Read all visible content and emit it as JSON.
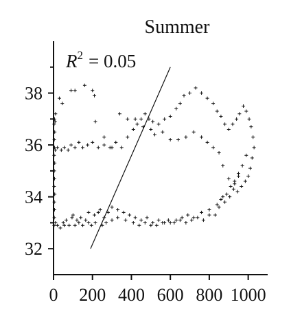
{
  "chart_data": {
    "type": "scatter",
    "title": "Summer",
    "annotation": {
      "r2_label": "R",
      "r2_exponent": "2",
      "r2_value": "= 0.05"
    },
    "xlabel": "",
    "ylabel": "",
    "xlim": [
      0,
      1100
    ],
    "ylim": [
      31,
      40
    ],
    "x_ticks": [
      0,
      200,
      400,
      600,
      800,
      1000
    ],
    "x_tick_labels": [
      "0",
      "200",
      "400",
      "600",
      "800",
      "1000"
    ],
    "y_ticks": [
      32,
      34,
      36,
      38
    ],
    "y_tick_labels": [
      "32",
      "34",
      "36",
      "38"
    ],
    "y_minor_ticks": [
      33,
      35,
      37,
      39
    ],
    "grid": false,
    "fit_line": {
      "x": [
        190,
        600
      ],
      "y": [
        32.0,
        39.0
      ]
    },
    "series": [
      {
        "points": [
          [
            3,
            32.9
          ],
          [
            4,
            33.2
          ],
          [
            5,
            33.5
          ],
          [
            4,
            33.8
          ],
          [
            6,
            34.1
          ],
          [
            3,
            34.4
          ],
          [
            5,
            34.7
          ],
          [
            4,
            35.0
          ],
          [
            6,
            35.3
          ],
          [
            3,
            35.6
          ],
          [
            5,
            35.9
          ],
          [
            4,
            36.2
          ],
          [
            6,
            36.5
          ],
          [
            3,
            36.8
          ],
          [
            5,
            37.0
          ],
          [
            10,
            37.2
          ],
          [
            8,
            36.9
          ],
          [
            9,
            35.8
          ],
          [
            10,
            33.0
          ],
          [
            20,
            32.9
          ],
          [
            35,
            32.8
          ],
          [
            50,
            33.0
          ],
          [
            55,
            32.9
          ],
          [
            65,
            33.1
          ],
          [
            80,
            32.9
          ],
          [
            95,
            33.2
          ],
          [
            110,
            32.9
          ],
          [
            120,
            33.1
          ],
          [
            130,
            33.0
          ],
          [
            150,
            32.9
          ],
          [
            165,
            33.1
          ],
          [
            180,
            33.0
          ],
          [
            195,
            32.9
          ],
          [
            210,
            33.3
          ],
          [
            230,
            33.4
          ],
          [
            240,
            33.5
          ],
          [
            260,
            33.2
          ],
          [
            280,
            33.4
          ],
          [
            300,
            33.6
          ],
          [
            330,
            33.5
          ],
          [
            360,
            33.4
          ],
          [
            390,
            33.3
          ],
          [
            420,
            33.2
          ],
          [
            450,
            33.1
          ],
          [
            480,
            33.2
          ],
          [
            510,
            33.0
          ],
          [
            540,
            33.1
          ],
          [
            570,
            33.0
          ],
          [
            600,
            33.0
          ],
          [
            630,
            33.1
          ],
          [
            660,
            33.2
          ],
          [
            690,
            33.3
          ],
          [
            720,
            33.2
          ],
          [
            760,
            33.4
          ],
          [
            800,
            33.5
          ],
          [
            840,
            33.7
          ],
          [
            860,
            33.9
          ],
          [
            880,
            33.8
          ],
          [
            905,
            34.0
          ],
          [
            925,
            34.3
          ],
          [
            945,
            34.2
          ],
          [
            965,
            34.4
          ],
          [
            985,
            34.6
          ],
          [
            1000,
            34.8
          ],
          [
            1010,
            35.1
          ],
          [
            1020,
            35.5
          ],
          [
            1030,
            35.9
          ],
          [
            1025,
            36.3
          ],
          [
            1015,
            36.7
          ],
          [
            1005,
            37.0
          ],
          [
            990,
            37.3
          ],
          [
            975,
            37.5
          ],
          [
            20,
            35.9
          ],
          [
            40,
            35.8
          ],
          [
            55,
            35.9
          ],
          [
            75,
            35.8
          ],
          [
            90,
            36.0
          ],
          [
            110,
            35.9
          ],
          [
            130,
            36.1
          ],
          [
            150,
            35.9
          ],
          [
            175,
            36.0
          ],
          [
            200,
            36.1
          ],
          [
            230,
            35.9
          ],
          [
            260,
            36.0
          ],
          [
            290,
            35.9
          ],
          [
            320,
            36.1
          ],
          [
            350,
            35.9
          ],
          [
            380,
            36.3
          ],
          [
            410,
            36.6
          ],
          [
            430,
            36.8
          ],
          [
            450,
            37.0
          ],
          [
            470,
            37.2
          ],
          [
            490,
            37.0
          ],
          [
            510,
            36.9
          ],
          [
            540,
            36.8
          ],
          [
            570,
            37.0
          ],
          [
            600,
            37.1
          ],
          [
            630,
            37.4
          ],
          [
            650,
            37.6
          ],
          [
            670,
            37.9
          ],
          [
            700,
            38.0
          ],
          [
            730,
            38.2
          ],
          [
            760,
            38.0
          ],
          [
            790,
            37.8
          ],
          [
            820,
            37.6
          ],
          [
            840,
            37.3
          ],
          [
            860,
            37.1
          ],
          [
            880,
            36.8
          ],
          [
            900,
            36.6
          ],
          [
            920,
            36.8
          ],
          [
            940,
            37.0
          ],
          [
            955,
            37.2
          ],
          [
            30,
            37.8
          ],
          [
            45,
            37.6
          ],
          [
            90,
            38.1
          ],
          [
            110,
            38.1
          ],
          [
            160,
            38.3
          ],
          [
            200,
            38.1
          ],
          [
            210,
            37.9
          ],
          [
            215,
            36.9
          ],
          [
            260,
            36.3
          ],
          [
            300,
            35.9
          ],
          [
            340,
            37.2
          ],
          [
            380,
            37.0
          ],
          [
            420,
            37.0
          ],
          [
            460,
            36.7
          ],
          [
            500,
            36.6
          ],
          [
            520,
            36.4
          ],
          [
            560,
            36.5
          ],
          [
            600,
            36.2
          ],
          [
            640,
            36.2
          ],
          [
            680,
            36.3
          ],
          [
            720,
            36.5
          ],
          [
            760,
            36.3
          ],
          [
            790,
            36.1
          ],
          [
            820,
            35.9
          ],
          [
            850,
            35.7
          ],
          [
            870,
            35.2
          ],
          [
            900,
            34.7
          ],
          [
            930,
            34.6
          ],
          [
            950,
            34.9
          ],
          [
            970,
            35.2
          ],
          [
            990,
            35.6
          ],
          [
            100,
            33.3
          ],
          [
            140,
            33.2
          ],
          [
            180,
            33.4
          ],
          [
            215,
            33.0
          ],
          [
            250,
            32.9
          ],
          [
            270,
            33.0
          ],
          [
            300,
            33.1
          ],
          [
            330,
            33.2
          ],
          [
            370,
            33.1
          ],
          [
            410,
            33.0
          ],
          [
            440,
            32.9
          ],
          [
            470,
            33.0
          ],
          [
            500,
            32.9
          ],
          [
            530,
            32.9
          ],
          [
            560,
            33.0
          ],
          [
            590,
            33.1
          ],
          [
            620,
            33.0
          ],
          [
            650,
            33.1
          ],
          [
            680,
            33.0
          ],
          [
            710,
            33.1
          ],
          [
            740,
            33.2
          ],
          [
            770,
            33.1
          ],
          [
            800,
            33.3
          ],
          [
            830,
            33.3
          ],
          [
            850,
            33.6
          ],
          [
            870,
            34.0
          ],
          [
            890,
            34.1
          ],
          [
            910,
            34.4
          ],
          [
            930,
            34.5
          ],
          [
            950,
            34.8
          ]
        ]
      }
    ]
  }
}
